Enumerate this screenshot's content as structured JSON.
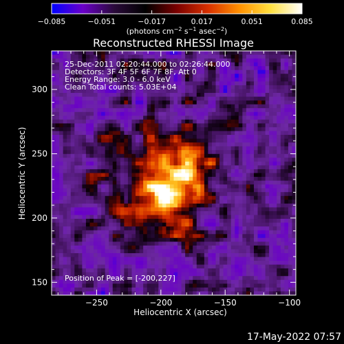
{
  "colorbar": {
    "ticks": [
      "−0.085",
      "−0.051",
      "−0.017",
      "0.017",
      "0.051",
      "0.085"
    ],
    "min": -0.085,
    "max": 0.085,
    "units": "(photons cm",
    "units_exp1": "−2",
    "units_mid1": " s",
    "units_exp2": "−1",
    "units_mid2": " asec",
    "units_exp3": "−2",
    "units_end": ")",
    "colors": [
      "#0000ff",
      "#6a00c8",
      "#2a0a3a",
      "#000000",
      "#7a0000",
      "#d83000",
      "#ff9000",
      "#ffe040",
      "#ffffff"
    ]
  },
  "chart_data": {
    "type": "heatmap",
    "title": "Reconstructed RHESSI Image",
    "xlabel": "Heliocentric X (arcsec)",
    "ylabel": "Heliocentric Y (arcsec)",
    "xlim": [
      -285,
      -95
    ],
    "ylim": [
      140,
      330
    ],
    "x_ticks": [
      {
        "value": -250,
        "label": "−250"
      },
      {
        "value": -200,
        "label": "−200"
      },
      {
        "value": -150,
        "label": "−150"
      },
      {
        "value": -100,
        "label": "−100"
      }
    ],
    "y_ticks": [
      {
        "value": 150,
        "label": "150"
      },
      {
        "value": 200,
        "label": "200"
      },
      {
        "value": 250,
        "label": "250"
      },
      {
        "value": 300,
        "label": "300"
      }
    ],
    "peak": [
      -200,
      227
    ],
    "annotations": [
      "25-Dec-2011 02:20:44.000 to 02:26:44.000",
      "Detectors: 3F 4F 5F 6F 7F 8F, Att 0",
      "Energy Range: 3.0 - 6.0 keV",
      "Clean     Total counts: 5.03E+04"
    ],
    "peak_label": "Position of Peak = [-200,227]"
  },
  "footer": {
    "date": "17-May-2022 07:57"
  }
}
